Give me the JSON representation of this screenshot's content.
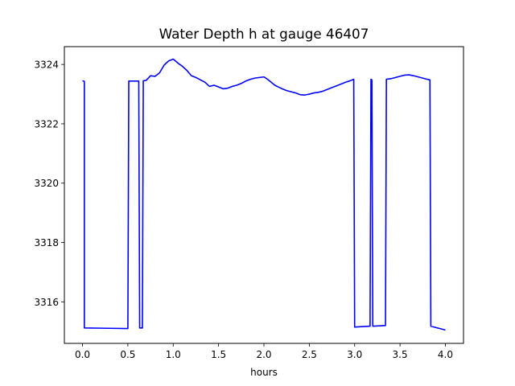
{
  "chart_data": {
    "type": "line",
    "title": "Water Depth h at gauge 46407",
    "xlabel": "hours",
    "ylabel": "",
    "xlim": [
      -0.2,
      4.2
    ],
    "ylim": [
      3314.6,
      3324.6
    ],
    "xticks": [
      0.0,
      0.5,
      1.0,
      1.5,
      2.0,
      2.5,
      3.0,
      3.5,
      4.0
    ],
    "xtick_labels": [
      "0.0",
      "0.5",
      "1.0",
      "1.5",
      "2.0",
      "2.5",
      "3.0",
      "3.5",
      "4.0"
    ],
    "yticks": [
      3316,
      3318,
      3320,
      3322,
      3324
    ],
    "ytick_labels": [
      "3316",
      "3318",
      "3320",
      "3322",
      "3324"
    ],
    "grid": false,
    "series": [
      {
        "color": "#0000ff",
        "x": [
          0.0,
          0.02,
          0.02,
          0.5,
          0.51,
          0.62,
          0.63,
          0.66,
          0.67,
          0.7,
          0.75,
          0.8,
          0.85,
          0.9,
          0.95,
          1.0,
          1.05,
          1.1,
          1.15,
          1.2,
          1.25,
          1.3,
          1.35,
          1.4,
          1.45,
          1.5,
          1.55,
          1.6,
          1.65,
          1.7,
          1.75,
          1.8,
          1.85,
          1.9,
          1.95,
          2.0,
          2.04,
          2.08,
          2.12,
          2.16,
          2.2,
          2.25,
          2.3,
          2.35,
          2.4,
          2.45,
          2.5,
          2.55,
          2.6,
          2.65,
          2.7,
          2.75,
          2.8,
          2.85,
          2.9,
          2.95,
          2.99,
          3.0,
          3.17,
          3.18,
          3.19,
          3.2,
          3.21,
          3.34,
          3.35,
          3.4,
          3.45,
          3.5,
          3.55,
          3.6,
          3.65,
          3.7,
          3.75,
          3.8,
          3.83,
          3.84,
          4.0
        ],
        "y": [
          3323.45,
          3323.43,
          3315.12,
          3315.1,
          3323.44,
          3323.44,
          3315.12,
          3315.12,
          3323.45,
          3323.46,
          3323.62,
          3323.6,
          3323.72,
          3323.98,
          3324.12,
          3324.18,
          3324.05,
          3323.94,
          3323.8,
          3323.62,
          3323.56,
          3323.48,
          3323.4,
          3323.26,
          3323.3,
          3323.24,
          3323.18,
          3323.2,
          3323.26,
          3323.3,
          3323.36,
          3323.44,
          3323.5,
          3323.54,
          3323.56,
          3323.58,
          3323.5,
          3323.4,
          3323.3,
          3323.24,
          3323.18,
          3323.12,
          3323.08,
          3323.04,
          3322.98,
          3322.97,
          3323.0,
          3323.04,
          3323.06,
          3323.1,
          3323.16,
          3323.22,
          3323.28,
          3323.34,
          3323.4,
          3323.45,
          3323.5,
          3315.15,
          3315.18,
          3323.5,
          3323.48,
          3315.18,
          3315.18,
          3315.2,
          3323.5,
          3323.52,
          3323.56,
          3323.6,
          3323.64,
          3323.65,
          3323.62,
          3323.58,
          3323.54,
          3323.5,
          3323.48,
          3315.18,
          3315.05
        ]
      }
    ]
  }
}
